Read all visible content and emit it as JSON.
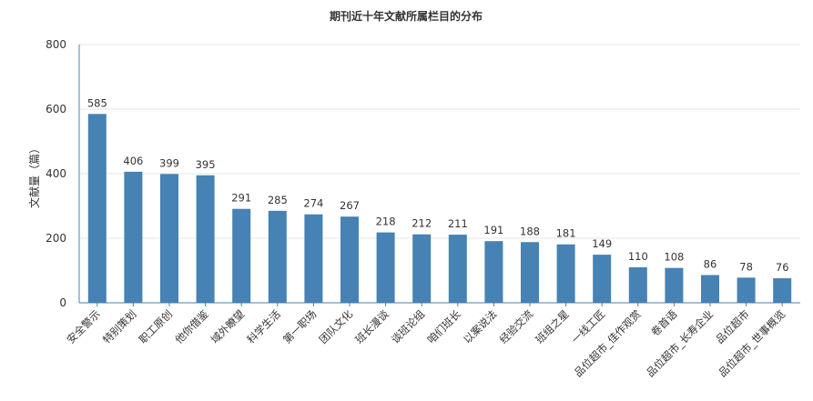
{
  "chart_data": {
    "type": "bar",
    "title": "期刊近十年文献所属栏目的分布",
    "xlabel": "",
    "ylabel": "文献量（篇）",
    "ylim": [
      0,
      800
    ],
    "yticks": [
      0,
      200,
      400,
      600,
      800
    ],
    "grid": true,
    "categories": [
      "安全警示",
      "特别策划",
      "职工原创",
      "他你借鉴",
      "域外瞭望",
      "科学生活",
      "第一职场",
      "团队文化",
      "班长漫谈",
      "谈班论组",
      "咱们班长",
      "以案说法",
      "经验交流",
      "班组之星",
      "一线工匠",
      "品位超市_佳作观赏",
      "卷首语",
      "品位超市_长寿企业",
      "品位超市",
      "品位超市_世事概览"
    ],
    "values": [
      585,
      406,
      399,
      395,
      291,
      285,
      274,
      267,
      218,
      212,
      211,
      191,
      188,
      181,
      149,
      110,
      108,
      86,
      78,
      76
    ],
    "colors": {
      "bar": "#4682b4",
      "axis": "#4682b4",
      "grid": "#e6e6e6",
      "text": "#333333"
    }
  }
}
